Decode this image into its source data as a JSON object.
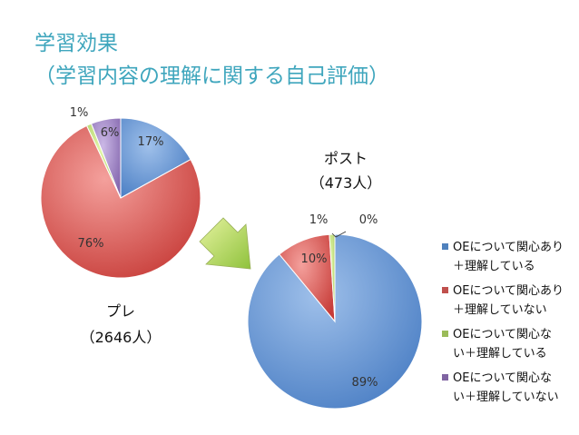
{
  "title_line1": "学習効果",
  "title_line2": "（学習内容の理解に関する自己評価）",
  "chart_data": {
    "type": "pie",
    "legend_position": "right",
    "legend": [
      {
        "lines": [
          "OEについて関心あり",
          "＋理解している"
        ],
        "color": "#4f81bd"
      },
      {
        "lines": [
          "OEについて関心あり",
          "＋理解していない"
        ],
        "color": "#c0504d"
      },
      {
        "lines": [
          "OEについて関心な",
          "い＋理解している"
        ],
        "color": "#9bbb59"
      },
      {
        "lines": [
          "OEについて関心な",
          "い＋理解していない"
        ],
        "color": "#8064a2"
      }
    ],
    "charts": [
      {
        "name": "プレ",
        "count_label": "（2646人）",
        "values": [
          17,
          76,
          1,
          6
        ],
        "labels": [
          "17%",
          "76%",
          "1%",
          "6%"
        ]
      },
      {
        "name": "ポスト",
        "count_label": "（473人）",
        "values": [
          89,
          10,
          1,
          0
        ],
        "labels": [
          "89%",
          "10%",
          "1%",
          "0%"
        ]
      }
    ]
  }
}
